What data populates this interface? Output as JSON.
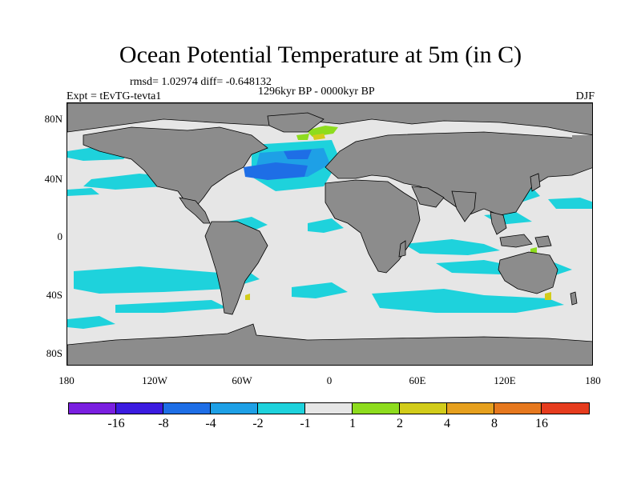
{
  "title": "Ocean Potential Temperature at 5m (in C)",
  "stats": "rmsd= 1.02974 diff= -0.648132",
  "period": "1296kyr BP - 0000kyr BP",
  "experiment": "Expt = tEvTG-tevta1",
  "season": "DJF",
  "y_ticks": [
    "80N",
    "40N",
    "0",
    "40S",
    "80S"
  ],
  "x_ticks": [
    "180",
    "120W",
    "60W",
    "0",
    "60E",
    "120E",
    "180"
  ],
  "colors": {
    "land": "#8c8c8c",
    "neutral": "#e6e6e6",
    "coastline": "#000000"
  },
  "colorbar": {
    "colors": [
      "#7a1fe0",
      "#3b1be0",
      "#1e6ee6",
      "#1ea0e6",
      "#1ed2dc",
      "#e6e6e6",
      "#8edc1e",
      "#d2cc1a",
      "#e6a01e",
      "#e6781e",
      "#e63c1e"
    ],
    "labels": [
      "-16",
      "-8",
      "-4",
      "-2",
      "-1",
      "1",
      "2",
      "4",
      "8",
      "16"
    ]
  }
}
